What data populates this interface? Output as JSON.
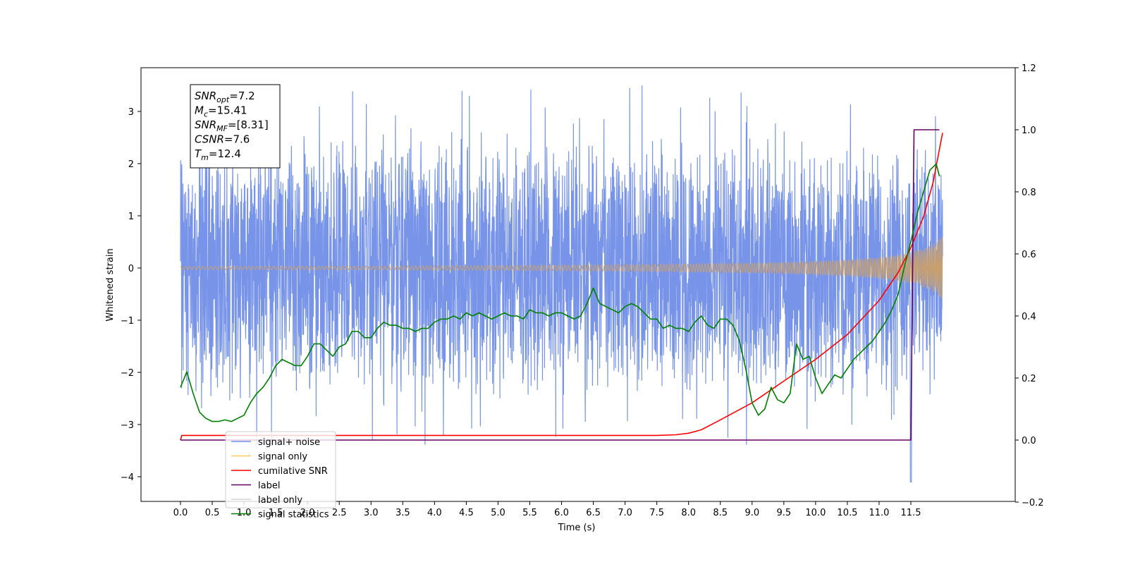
{
  "chart_data": {
    "type": "line",
    "xlabel": "Time (s)",
    "ylabel": "Whitened strain",
    "xlim": [
      -0.6,
      12.6
    ],
    "ylim": [
      -4.5,
      3.75
    ],
    "y2lim": [
      -0.2,
      1.2
    ],
    "x_ticks": [
      "0.0",
      "0.5",
      "1.0",
      "1.5",
      "2.0",
      "2.5",
      "3.0",
      "3.5",
      "4.0",
      "4.5",
      "5.0",
      "5.5",
      "6.0",
      "6.5",
      "7.0",
      "7.5",
      "8.0",
      "8.5",
      "9.0",
      "9.5",
      "10.0",
      "10.5",
      "11.0",
      "11.5"
    ],
    "y_ticks": [
      "3",
      "2",
      "1",
      "0",
      "−1",
      "−2",
      "−3",
      "−4"
    ],
    "y2_ticks": [
      "1.2",
      "1.0",
      "0.8",
      "0.6",
      "0.4",
      "0.2",
      "0.0",
      "−0.2"
    ],
    "info_box": [
      {
        "base": "SNR",
        "sub": "opt",
        "value": "=7.2"
      },
      {
        "base": "M",
        "sub": "c",
        "value": "=15.41"
      },
      {
        "base": "SNR",
        "sub": "MF",
        "value": "=[8.31]"
      },
      {
        "base": "CSNR",
        "sub": "",
        "value": "=7.6"
      },
      {
        "base": "T",
        "sub": "m",
        "value": "=12.4"
      }
    ],
    "legend": {
      "placement": "lower-left",
      "entries": [
        {
          "label": "signal+ noise",
          "color": "#6f8de8"
        },
        {
          "label": "signal only",
          "color": "#ffc966"
        },
        {
          "label": "cumilative SNR",
          "color": "#ff0000"
        },
        {
          "label": "label",
          "color": "#660066"
        },
        {
          "label": "label only",
          "color": "#d3d3d3"
        },
        {
          "label": "signal statistics",
          "color": "#008000"
        }
      ]
    },
    "series": [
      {
        "name": "signal+ noise",
        "axis": "left",
        "color": "#7794e8",
        "kind": "noise",
        "x_range": [
          0.0,
          12.0
        ],
        "band_base": [
          -1.6,
          1.7
        ],
        "extremes": [
          -4.1,
          3.5
        ]
      },
      {
        "name": "signal only",
        "axis": "left",
        "color": "#c8a070",
        "kind": "chirp",
        "x_range": [
          0.0,
          12.0
        ],
        "end_amplitude": 0.6
      },
      {
        "name": "cumilative SNR",
        "axis": "right",
        "color": "#ff0000",
        "x": [
          0.0,
          0.02,
          7.5,
          7.8,
          8.0,
          8.2,
          8.5,
          9.0,
          9.5,
          10.0,
          10.5,
          11.0,
          11.3,
          11.5,
          11.7,
          11.85,
          12.0
        ],
        "y": [
          0.0,
          0.015,
          0.015,
          0.017,
          0.022,
          0.033,
          0.065,
          0.12,
          0.19,
          0.26,
          0.34,
          0.45,
          0.54,
          0.62,
          0.72,
          0.83,
          0.99
        ]
      },
      {
        "name": "label",
        "axis": "right",
        "color": "#660066",
        "x": [
          0.0,
          11.5,
          11.55,
          11.6,
          11.95
        ],
        "y": [
          0.0,
          0.0,
          1.0,
          1.0,
          1.0
        ]
      },
      {
        "name": "signal statistics",
        "axis": "right",
        "color": "#008000",
        "x": [
          0.0,
          0.1,
          0.2,
          0.3,
          0.4,
          0.5,
          0.6,
          0.7,
          0.8,
          0.9,
          1.0,
          1.1,
          1.2,
          1.3,
          1.4,
          1.5,
          1.6,
          1.7,
          1.8,
          1.9,
          2.0,
          2.1,
          2.2,
          2.3,
          2.4,
          2.5,
          2.6,
          2.7,
          2.8,
          2.9,
          3.0,
          3.1,
          3.2,
          3.3,
          3.4,
          3.5,
          3.6,
          3.7,
          3.8,
          3.9,
          4.0,
          4.1,
          4.2,
          4.3,
          4.4,
          4.5,
          4.6,
          4.7,
          4.8,
          4.9,
          5.0,
          5.1,
          5.2,
          5.3,
          5.4,
          5.5,
          5.6,
          5.7,
          5.8,
          5.9,
          6.0,
          6.1,
          6.2,
          6.3,
          6.4,
          6.5,
          6.6,
          6.7,
          6.8,
          6.9,
          7.0,
          7.1,
          7.2,
          7.3,
          7.4,
          7.5,
          7.6,
          7.7,
          7.8,
          7.9,
          8.0,
          8.1,
          8.2,
          8.3,
          8.4,
          8.5,
          8.6,
          8.7,
          8.8,
          8.9,
          9.0,
          9.1,
          9.2,
          9.3,
          9.4,
          9.5,
          9.6,
          9.7,
          9.8,
          9.9,
          10.0,
          10.1,
          10.2,
          10.3,
          10.4,
          10.5,
          10.6,
          10.7,
          10.8,
          10.9,
          11.0,
          11.1,
          11.2,
          11.3,
          11.4,
          11.5,
          11.6,
          11.7,
          11.8,
          11.9,
          11.95
        ],
        "y": [
          0.17,
          0.22,
          0.15,
          0.09,
          0.07,
          0.06,
          0.06,
          0.065,
          0.06,
          0.07,
          0.08,
          0.12,
          0.15,
          0.17,
          0.2,
          0.24,
          0.26,
          0.25,
          0.24,
          0.24,
          0.27,
          0.31,
          0.31,
          0.29,
          0.27,
          0.3,
          0.31,
          0.35,
          0.35,
          0.33,
          0.33,
          0.36,
          0.38,
          0.37,
          0.37,
          0.36,
          0.36,
          0.35,
          0.36,
          0.36,
          0.38,
          0.39,
          0.39,
          0.4,
          0.39,
          0.41,
          0.4,
          0.41,
          0.4,
          0.39,
          0.4,
          0.41,
          0.4,
          0.4,
          0.39,
          0.42,
          0.41,
          0.41,
          0.4,
          0.41,
          0.41,
          0.4,
          0.39,
          0.4,
          0.44,
          0.49,
          0.44,
          0.43,
          0.42,
          0.41,
          0.43,
          0.44,
          0.43,
          0.41,
          0.39,
          0.39,
          0.36,
          0.37,
          0.36,
          0.36,
          0.35,
          0.38,
          0.4,
          0.37,
          0.36,
          0.39,
          0.39,
          0.37,
          0.32,
          0.23,
          0.12,
          0.08,
          0.1,
          0.17,
          0.13,
          0.12,
          0.15,
          0.31,
          0.26,
          0.27,
          0.2,
          0.15,
          0.18,
          0.21,
          0.2,
          0.23,
          0.26,
          0.28,
          0.3,
          0.32,
          0.35,
          0.38,
          0.42,
          0.47,
          0.56,
          0.64,
          0.73,
          0.8,
          0.87,
          0.89,
          0.85
        ]
      }
    ]
  }
}
